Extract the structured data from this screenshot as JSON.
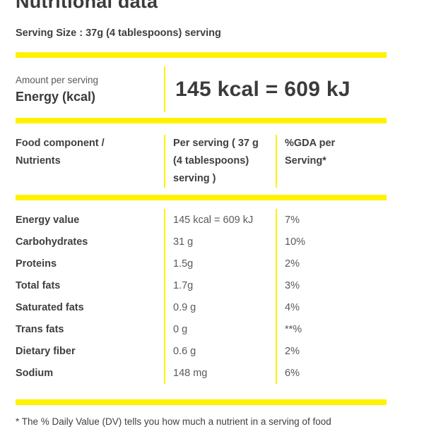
{
  "accent_color": "#fff200",
  "title": "Nutritional data",
  "serving_size": "Serving Size : 37g (4 tablespoons) serving",
  "energy_summary": {
    "amount_label": "Amount per serving",
    "energy_label": "Energy (kcal)",
    "value": "145 kcal = 609 kJ"
  },
  "table": {
    "headers": {
      "component": "Food component / Nutrients",
      "per_serving": "Per serving ( 37 g (4 tablespoons) serving )",
      "gda": "%GDA per Serving*"
    },
    "rows": [
      {
        "nutrient": "Energy value",
        "amount": "145 kcal = 609 kJ",
        "gda": "7%"
      },
      {
        "nutrient": "Carbohydrates",
        "amount": "31 g",
        "gda": "10%"
      },
      {
        "nutrient": "Proteins",
        "amount": "1.5g",
        "gda": "2%"
      },
      {
        "nutrient": "Total fats",
        "amount": "1.7g",
        "gda": "3%"
      },
      {
        "nutrient": "Saturated fats",
        "amount": "0.9 g",
        "gda": "4%"
      },
      {
        "nutrient": "Trans fats",
        "amount": "0 g",
        "gda": "**%"
      },
      {
        "nutrient": "Dietary fiber",
        "amount": "0.6 g",
        "gda": "2%"
      },
      {
        "nutrient": "Sodium",
        "amount": "148 mg",
        "gda": "6%"
      }
    ]
  },
  "footnote": "* The % Daily Value (DV) tells you how much a nutrient in a serving of food"
}
